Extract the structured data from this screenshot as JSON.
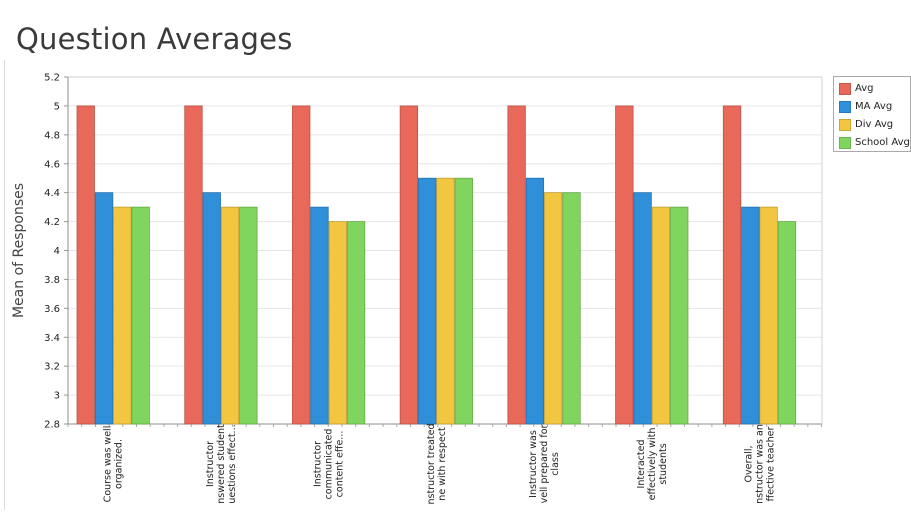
{
  "chart_data": {
    "type": "bar",
    "title": "Question Averages",
    "ylabel": "Mean of Responses",
    "xlabel": "",
    "ylim": [
      2.8,
      5.2
    ],
    "yticks": [
      "2.8",
      "3",
      "3.2",
      "3.4",
      "3.6",
      "3.8",
      "4",
      "4.2",
      "4.4",
      "4.6",
      "4.8",
      "5",
      "5.2"
    ],
    "grid": true,
    "legend_position": "right",
    "categories": [
      [
        "Course was well",
        "organized."
      ],
      [
        "Instructor",
        "nswered student",
        "uestions effect..."
      ],
      [
        "Instructor",
        "communicated",
        "content effe..."
      ],
      [
        "nstructor treated",
        "ne with respect"
      ],
      [
        "Instructor was",
        "vell prepared for",
        "class"
      ],
      [
        "Interacted",
        "effectively with",
        "students"
      ],
      [
        "Overall,",
        "nstructor was an",
        "ffective teacher"
      ]
    ],
    "series": [
      {
        "name": "Avg",
        "color": "#e8685a",
        "values": [
          5.0,
          5.0,
          5.0,
          5.0,
          5.0,
          5.0,
          5.0
        ]
      },
      {
        "name": "MA Avg",
        "color": "#2f8fd8",
        "values": [
          4.4,
          4.4,
          4.3,
          4.5,
          4.5,
          4.4,
          4.3
        ]
      },
      {
        "name": "Div Avg",
        "color": "#f2c640",
        "values": [
          4.3,
          4.3,
          4.2,
          4.5,
          4.4,
          4.3,
          4.3
        ]
      },
      {
        "name": "School Avg",
        "color": "#7fd55e",
        "values": [
          4.3,
          4.3,
          4.2,
          4.5,
          4.4,
          4.3,
          4.2
        ]
      }
    ]
  }
}
